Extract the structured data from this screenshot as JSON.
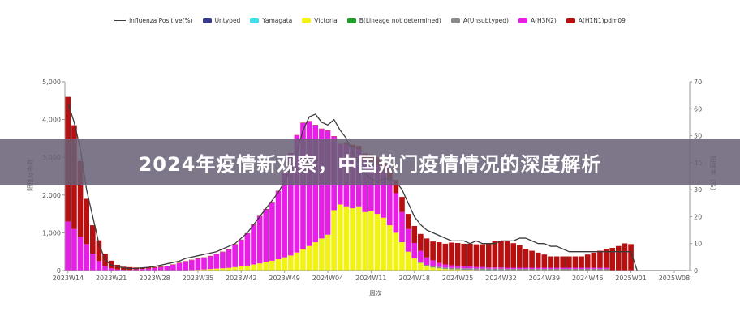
{
  "banner": {
    "title": "2024年疫情新观察，中国热门疫情情况的深度解析"
  },
  "chart_data": {
    "type": "bar",
    "stacked": true,
    "xlabel": "周次",
    "ylabel_left": "阳性标本数",
    "ylabel_right": "阳性率（%）",
    "ylim_left": [
      0,
      5000
    ],
    "ylim_right": [
      0,
      70
    ],
    "yticks_left": [
      "0",
      "1,000",
      "2,000",
      "3,000",
      "4,000",
      "5,000"
    ],
    "yticks_right": [
      "0",
      "10",
      "20",
      "30",
      "40",
      "50",
      "60",
      "70"
    ],
    "x_tick_labels": [
      "2023W14",
      "2023W21",
      "2023W28",
      "2023W35",
      "2023W42",
      "2023W49",
      "2024W04",
      "2024W11",
      "2024W18",
      "2024W25",
      "2024W32",
      "2024W39",
      "2024W46",
      "2025W01",
      "2025W08"
    ],
    "grid": false,
    "legend_position": "top",
    "weeks_total": 101,
    "series": [
      {
        "name": "Untyped",
        "color": "#3a3a8c",
        "values": []
      },
      {
        "name": "Yamagata",
        "color": "#3ee0e8",
        "values": []
      },
      {
        "name": "Victoria",
        "color": "#f2f215",
        "values": [
          0,
          0,
          0,
          0,
          0,
          0,
          0,
          0,
          0,
          0,
          0,
          0,
          0,
          0,
          0,
          0,
          0,
          0,
          5,
          10,
          15,
          20,
          30,
          40,
          50,
          60,
          70,
          90,
          110,
          130,
          160,
          190,
          220,
          260,
          300,
          350,
          400,
          480,
          560,
          650,
          750,
          850,
          950,
          1600,
          1750,
          1700,
          1650,
          1700,
          1550,
          1580,
          1500,
          1400,
          1200,
          1000,
          750,
          500,
          320,
          200,
          120,
          80,
          60,
          40,
          30,
          30,
          20,
          20,
          15,
          15,
          10,
          10,
          10,
          5,
          5,
          5,
          5,
          5,
          5,
          5,
          5,
          5,
          5,
          5,
          5,
          5,
          5,
          5,
          5,
          5,
          0,
          0,
          0,
          0,
          0,
          0,
          0,
          0,
          0,
          0,
          0,
          0,
          0
        ]
      },
      {
        "name": "B(Lineage not determined)",
        "color": "#1f9e2a",
        "values": []
      },
      {
        "name": "A(Unsubtyped)",
        "color": "#8a8a8a",
        "values": [
          0,
          0,
          0,
          0,
          0,
          0,
          0,
          0,
          0,
          0,
          0,
          0,
          0,
          0,
          0,
          0,
          0,
          0,
          0,
          0,
          0,
          0,
          0,
          0,
          0,
          0,
          0,
          0,
          0,
          0,
          0,
          0,
          0,
          0,
          0,
          0,
          0,
          0,
          0,
          0,
          0,
          0,
          0,
          0,
          0,
          0,
          0,
          0,
          0,
          0,
          0,
          0,
          0,
          0,
          0,
          0,
          10,
          20,
          30,
          40,
          40,
          40,
          40,
          40,
          40,
          40,
          40,
          40,
          40,
          40,
          40,
          40,
          40,
          40,
          40,
          40,
          40,
          40,
          40,
          40,
          40,
          40,
          40,
          40,
          40,
          40,
          40,
          40,
          0,
          0,
          0,
          0,
          0,
          0,
          0,
          0,
          0,
          0,
          0,
          0,
          0
        ]
      },
      {
        "name": "A(H3N2)",
        "color": "#e61ee6",
        "values": [
          1300,
          1100,
          900,
          700,
          450,
          250,
          120,
          60,
          30,
          20,
          20,
          30,
          40,
          50,
          70,
          90,
          110,
          150,
          190,
          230,
          260,
          290,
          310,
          340,
          380,
          430,
          480,
          600,
          700,
          850,
          1050,
          1250,
          1400,
          1550,
          1800,
          2250,
          2700,
          3100,
          3350,
          3300,
          3100,
          2900,
          2750,
          1950,
          1600,
          1650,
          1600,
          1500,
          1400,
          1300,
          1300,
          1250,
          1200,
          1050,
          800,
          600,
          400,
          300,
          200,
          150,
          100,
          80,
          70,
          60,
          50,
          50,
          40,
          40,
          30,
          30,
          30,
          30,
          30,
          30,
          30,
          30,
          30,
          30,
          30,
          30,
          30,
          30,
          30,
          30,
          30,
          30,
          30,
          30,
          0,
          0,
          0,
          0,
          0,
          0,
          0,
          0,
          0,
          0,
          0,
          0,
          0
        ]
      },
      {
        "name": "A(H1N1)pdm09",
        "color": "#b80f10",
        "values": [
          3300,
          2750,
          2000,
          1200,
          750,
          550,
          330,
          200,
          120,
          80,
          70,
          50,
          40,
          30,
          20,
          15,
          10,
          10,
          10,
          10,
          10,
          10,
          10,
          10,
          10,
          10,
          10,
          10,
          10,
          10,
          10,
          10,
          10,
          10,
          10,
          10,
          10,
          10,
          10,
          10,
          10,
          10,
          10,
          10,
          10,
          50,
          80,
          100,
          150,
          200,
          200,
          250,
          300,
          350,
          400,
          400,
          450,
          450,
          500,
          500,
          550,
          550,
          600,
          600,
          600,
          600,
          600,
          600,
          650,
          700,
          700,
          700,
          650,
          600,
          500,
          450,
          400,
          350,
          300,
          300,
          300,
          300,
          300,
          300,
          350,
          400,
          450,
          500,
          600,
          650,
          720,
          700,
          0,
          0,
          0,
          0,
          0,
          0,
          0,
          0,
          0
        ]
      }
    ],
    "line": {
      "name": "influenza Positive(%)",
      "axis": "right",
      "color": "#3b3b3b",
      "values": [
        62,
        55,
        45,
        30,
        20,
        10,
        4,
        2,
        1.5,
        1,
        0.8,
        0.8,
        1,
        1.2,
        1.5,
        2,
        2.5,
        3,
        3.5,
        4.5,
        5,
        5.5,
        6,
        6.5,
        7,
        8,
        9,
        10,
        12,
        14,
        17,
        20,
        23,
        26,
        29,
        33,
        38,
        44,
        52,
        57,
        58,
        55,
        54,
        56,
        52,
        49,
        44,
        40,
        36,
        34,
        33,
        34,
        34,
        33,
        30,
        25,
        20,
        17,
        15,
        14,
        13,
        12,
        11,
        11,
        11,
        10,
        11,
        10,
        10,
        10,
        11,
        11,
        11,
        12,
        12,
        11,
        10,
        10,
        9,
        9,
        8,
        7,
        7,
        7,
        7,
        7,
        7,
        7,
        7,
        7,
        7,
        7,
        0,
        0,
        0,
        0,
        0,
        0,
        0,
        0,
        0
      ]
    }
  }
}
